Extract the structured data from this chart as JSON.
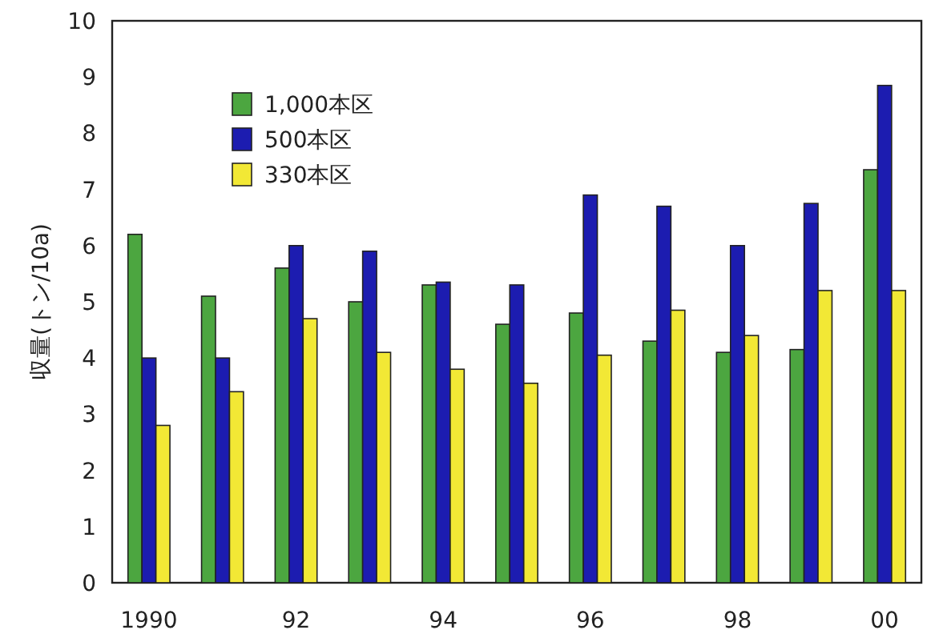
{
  "chart_data": {
    "type": "bar",
    "ylabel": "収量(トン/10a)",
    "categories": [
      "1990",
      null,
      "92",
      null,
      "94",
      null,
      "96",
      null,
      "98",
      null,
      "00"
    ],
    "series": [
      {
        "name": "1,000本区",
        "color": "#4ca640",
        "values": [
          6.2,
          5.1,
          5.6,
          5.0,
          5.3,
          4.6,
          4.8,
          4.3,
          4.1,
          4.15,
          7.35
        ]
      },
      {
        "name": "500本区",
        "color": "#1c1cb0",
        "values": [
          4.0,
          4.0,
          6.0,
          5.9,
          5.35,
          5.3,
          6.9,
          6.7,
          6.0,
          6.75,
          8.85
        ]
      },
      {
        "name": "330本区",
        "color": "#f2e835",
        "values": [
          2.8,
          3.4,
          4.7,
          4.1,
          3.8,
          3.55,
          4.05,
          4.85,
          4.4,
          5.2,
          5.2
        ]
      }
    ],
    "ylim": [
      0,
      10
    ],
    "yticks": [
      0,
      1,
      2,
      3,
      4,
      5,
      6,
      7,
      8,
      9,
      10
    ],
    "legend": "top left"
  }
}
